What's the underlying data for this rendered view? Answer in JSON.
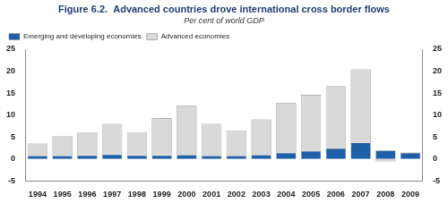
{
  "chart_data": {
    "type": "bar",
    "title": "Figure 6.2.  Advanced countries drove international cross border flows",
    "subtitle": "Per cent of world GDP",
    "categories": [
      "1994",
      "1995",
      "1996",
      "1997",
      "1998",
      "1999",
      "2000",
      "2001",
      "2002",
      "2003",
      "2004",
      "2005",
      "2006",
      "2007",
      "2008",
      "2009"
    ],
    "series": [
      {
        "name": "Emerging and developing economies",
        "color": "#1f5fa8",
        "values": [
          0.7,
          0.7,
          0.8,
          1.0,
          0.8,
          0.8,
          0.9,
          0.7,
          0.7,
          0.9,
          1.4,
          1.8,
          2.4,
          3.7,
          1.9,
          1.4
        ]
      },
      {
        "name": "Advanced economies",
        "color": "#d9d9d9",
        "values": [
          2.8,
          4.5,
          5.2,
          7.0,
          5.3,
          8.5,
          11.2,
          7.3,
          5.8,
          8.1,
          11.3,
          12.8,
          14.2,
          16.7,
          -0.6,
          0.1
        ]
      }
    ],
    "stacked": true,
    "ylim": [
      -5,
      25
    ],
    "yticks": [
      -5,
      0,
      5,
      10,
      15,
      20,
      25
    ],
    "y2lim": [
      -5,
      25
    ],
    "y2ticks": [
      -5,
      0,
      5,
      10,
      15,
      20,
      25
    ],
    "grid": false,
    "legend": "top-left"
  }
}
